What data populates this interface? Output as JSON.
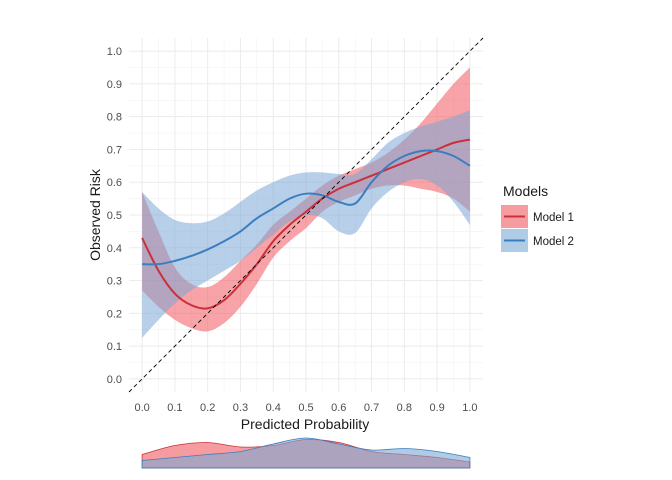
{
  "chart_data": {
    "type": "line",
    "title": "",
    "xlabel": "Predicted Probability",
    "ylabel": "Observed Risk",
    "xlim": [
      -0.04,
      1.04
    ],
    "ylim": [
      -0.04,
      1.04
    ],
    "x_ticks": [
      0.0,
      0.1,
      0.2,
      0.3,
      0.4,
      0.5,
      0.6,
      0.7,
      0.8,
      0.9,
      1.0
    ],
    "x_tick_labels": [
      "0.0",
      "0.1",
      "0.2",
      "0.3",
      "0.4",
      "0.5",
      "0.6",
      "0.7",
      "0.8",
      "0.9",
      "1.0"
    ],
    "y_ticks": [
      0.0,
      0.1,
      0.2,
      0.3,
      0.4,
      0.5,
      0.6,
      0.7,
      0.8,
      0.9,
      1.0
    ],
    "y_tick_labels": [
      "0.0",
      "0.1",
      "0.2",
      "0.3",
      "0.4",
      "0.5",
      "0.6",
      "0.7",
      "0.8",
      "0.9",
      "1.0"
    ],
    "grid": true,
    "reference_line": {
      "style": "dashed",
      "from": [
        -0.04,
        -0.04
      ],
      "to": [
        1.04,
        1.04
      ],
      "color": "#000000"
    },
    "legend": {
      "title": "Models",
      "position": "right"
    },
    "series": [
      {
        "name": "Model 1",
        "line_color": "#C9303B",
        "fill_color": "#F0585F",
        "x": [
          0.0,
          0.05,
          0.1,
          0.15,
          0.2,
          0.25,
          0.3,
          0.35,
          0.4,
          0.45,
          0.5,
          0.55,
          0.6,
          0.65,
          0.7,
          0.75,
          0.8,
          0.85,
          0.9,
          0.95,
          1.0
        ],
        "y": [
          0.43,
          0.33,
          0.26,
          0.225,
          0.215,
          0.24,
          0.29,
          0.35,
          0.42,
          0.47,
          0.51,
          0.55,
          0.58,
          0.6,
          0.62,
          0.64,
          0.66,
          0.68,
          0.7,
          0.72,
          0.73
        ],
        "lower": [
          0.27,
          0.22,
          0.18,
          0.155,
          0.145,
          0.17,
          0.22,
          0.29,
          0.37,
          0.42,
          0.46,
          0.51,
          0.54,
          0.56,
          0.58,
          0.59,
          0.59,
          0.58,
          0.57,
          0.55,
          0.51
        ],
        "upper": [
          0.57,
          0.45,
          0.34,
          0.29,
          0.28,
          0.31,
          0.36,
          0.41,
          0.47,
          0.51,
          0.55,
          0.59,
          0.62,
          0.64,
          0.66,
          0.69,
          0.73,
          0.78,
          0.84,
          0.9,
          0.95
        ]
      },
      {
        "name": "Model 2",
        "line_color": "#3B7EBF",
        "fill_color": "#7BA8D6",
        "x": [
          0.0,
          0.05,
          0.1,
          0.15,
          0.2,
          0.25,
          0.3,
          0.35,
          0.4,
          0.45,
          0.5,
          0.55,
          0.6,
          0.65,
          0.7,
          0.75,
          0.8,
          0.85,
          0.9,
          0.95,
          1.0
        ],
        "y": [
          0.35,
          0.35,
          0.36,
          0.375,
          0.395,
          0.42,
          0.45,
          0.49,
          0.52,
          0.55,
          0.565,
          0.56,
          0.54,
          0.535,
          0.6,
          0.65,
          0.68,
          0.695,
          0.695,
          0.68,
          0.65
        ],
        "lower": [
          0.125,
          0.18,
          0.23,
          0.27,
          0.3,
          0.33,
          0.36,
          0.4,
          0.44,
          0.48,
          0.5,
          0.49,
          0.45,
          0.445,
          0.52,
          0.57,
          0.6,
          0.61,
          0.59,
          0.54,
          0.47
        ],
        "upper": [
          0.57,
          0.52,
          0.485,
          0.475,
          0.48,
          0.505,
          0.54,
          0.575,
          0.6,
          0.62,
          0.63,
          0.63,
          0.625,
          0.625,
          0.67,
          0.72,
          0.75,
          0.77,
          0.785,
          0.8,
          0.82
        ]
      }
    ],
    "distribution": {
      "x": [
        0.0,
        0.1,
        0.2,
        0.3,
        0.4,
        0.5,
        0.6,
        0.7,
        0.8,
        0.9,
        1.0
      ],
      "model_1": [
        0.45,
        0.75,
        0.85,
        0.7,
        0.75,
        0.95,
        0.85,
        0.55,
        0.45,
        0.35,
        0.2
      ],
      "model_2": [
        0.25,
        0.35,
        0.45,
        0.55,
        0.8,
        1.0,
        0.8,
        0.6,
        0.65,
        0.55,
        0.35
      ]
    }
  }
}
